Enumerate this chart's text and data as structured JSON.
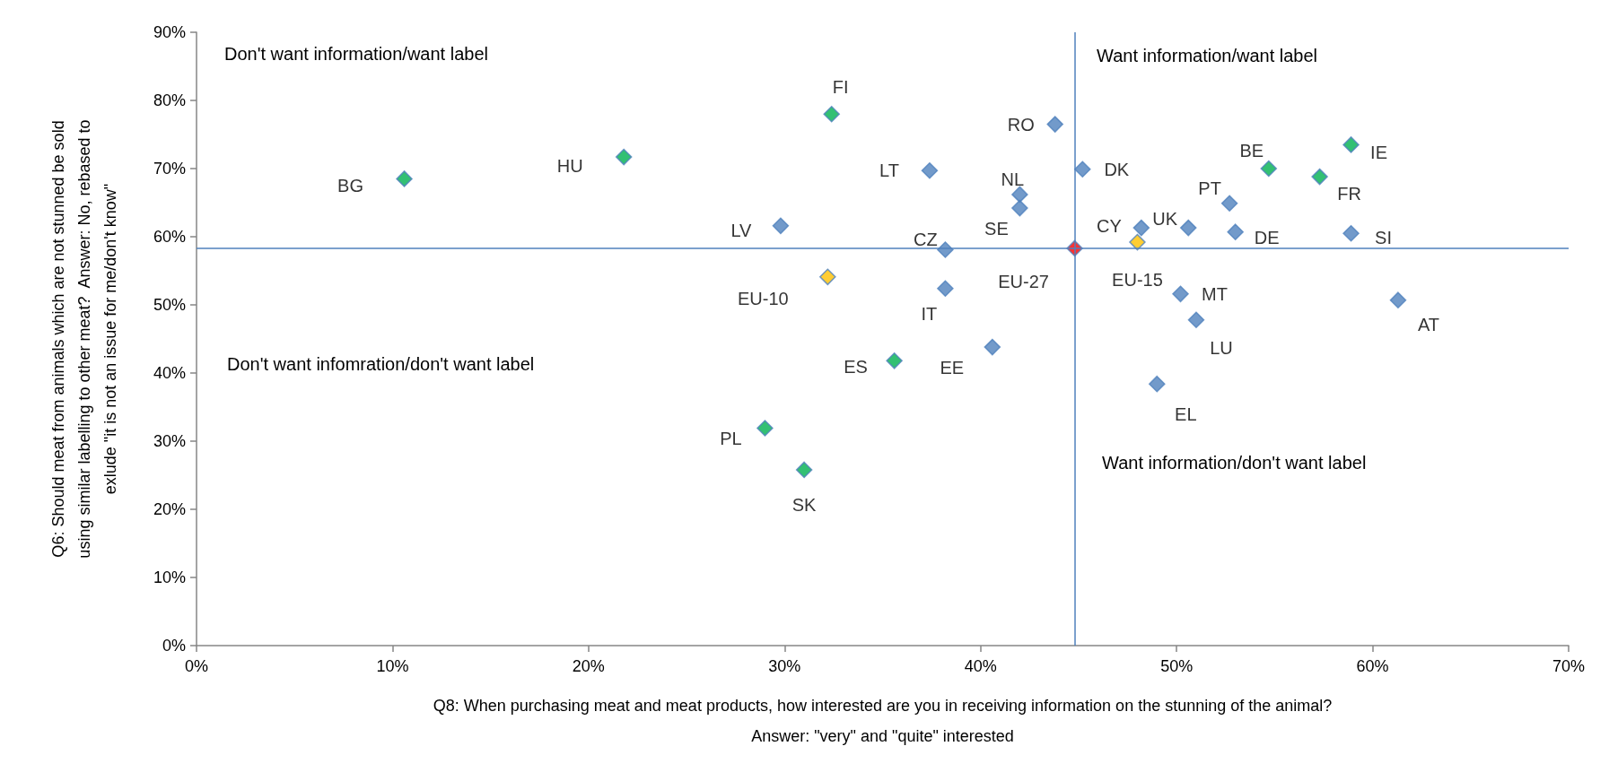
{
  "chart_data": {
    "type": "scatter",
    "xlabel": "Q8: When purchasing meat and meat products, how interested are you in receiving information on the stunning of the animal?\nAnswer: \"very\" and \"quite\" interested",
    "ylabel": "Q6: Should meat from animals which are not stunned be sold\nusing similar labelling to other meat?  Answer: No, rebased to\nexlude \"it is not an issue for me/don't know\"",
    "x": [
      10.6,
      21.8,
      32.4,
      37.4,
      29.8,
      32.2,
      38.2,
      38.2,
      35.6,
      40.6,
      29.0,
      31.0,
      43.8,
      42.0,
      42.0,
      44.8,
      45.2,
      48.2,
      48.0,
      50.6,
      52.7,
      53.0,
      54.7,
      57.3,
      58.9,
      58.9,
      50.2,
      51.0,
      61.3,
      49.0
    ],
    "values": [
      68.5,
      71.7,
      78.0,
      69.7,
      61.6,
      54.1,
      58.1,
      52.4,
      41.8,
      43.8,
      31.9,
      25.8,
      76.5,
      66.2,
      64.2,
      58.3,
      69.9,
      61.3,
      59.2,
      61.3,
      64.9,
      60.7,
      70.0,
      68.8,
      73.5,
      60.5,
      51.6,
      47.8,
      50.7,
      38.4
    ],
    "colors": [
      "#00b050",
      "#00b050",
      "#00b050",
      "#4f81bd",
      "#4f81bd",
      "#ffc000",
      "#4f81bd",
      "#4f81bd",
      "#00b050",
      "#4f81bd",
      "#00b050",
      "#00b050",
      "#4f81bd",
      "#4f81bd",
      "#4f81bd",
      "#ff0000",
      "#4f81bd",
      "#4f81bd",
      "#ffc000",
      "#4f81bd",
      "#4f81bd",
      "#4f81bd",
      "#00b050",
      "#00b050",
      "#00b050",
      "#4f81bd",
      "#4f81bd",
      "#4f81bd",
      "#4f81bd",
      "#4f81bd"
    ],
    "marker": "diamond",
    "xlim": [
      0,
      70
    ],
    "xticks": [
      {
        "value": 0,
        "label": "0%"
      },
      {
        "value": 10,
        "label": "10%"
      },
      {
        "value": 20,
        "label": "20%"
      },
      {
        "value": 30,
        "label": "30%"
      },
      {
        "value": 40,
        "label": "40%"
      },
      {
        "value": 50,
        "label": "50%"
      },
      {
        "value": 60,
        "label": "60%"
      },
      {
        "value": 70,
        "label": "70%"
      }
    ],
    "ylim": [
      0,
      90
    ],
    "yticks": [
      {
        "value": 0,
        "label": "0%"
      },
      {
        "value": 10,
        "label": "10%"
      },
      {
        "value": 20,
        "label": "20%"
      },
      {
        "value": 30,
        "label": "30%"
      },
      {
        "value": 40,
        "label": "40%"
      },
      {
        "value": 50,
        "label": "50%"
      },
      {
        "value": 60,
        "label": "60%"
      },
      {
        "value": 70,
        "label": "70%"
      },
      {
        "value": 80,
        "label": "80%"
      },
      {
        "value": 90,
        "label": "90%"
      }
    ],
    "grid": false,
    "ref_lines": [
      {
        "axis": "x",
        "value": 44.8,
        "color": "#4f81bd"
      },
      {
        "axis": "y",
        "value": 58.3,
        "color": "#4f81bd"
      }
    ],
    "annotations": [
      "Don't want information/want label",
      "Want information/want label",
      "Don't want infomration/don't want label",
      "Want information/don't want label",
      {
        "text": "BG",
        "x": 10.6,
        "y": 68.5
      },
      {
        "text": "HU",
        "x": 21.8,
        "y": 71.7
      },
      {
        "text": "FI",
        "x": 32.4,
        "y": 78.0
      },
      {
        "text": "LT",
        "x": 37.4,
        "y": 69.7
      },
      {
        "text": "LV",
        "x": 29.8,
        "y": 61.6
      },
      {
        "text": "EU-10",
        "x": 32.2,
        "y": 54.1
      },
      {
        "text": "CZ",
        "x": 38.2,
        "y": 58.1
      },
      {
        "text": "IT",
        "x": 38.2,
        "y": 52.4
      },
      {
        "text": "ES",
        "x": 35.6,
        "y": 41.8
      },
      {
        "text": "EE",
        "x": 40.6,
        "y": 43.8
      },
      {
        "text": "PL",
        "x": 29.0,
        "y": 31.9
      },
      {
        "text": "SK",
        "x": 31.0,
        "y": 25.8
      },
      {
        "text": "RO",
        "x": 43.8,
        "y": 76.5
      },
      {
        "text": "NL",
        "x": 42.0,
        "y": 66.2
      },
      {
        "text": "SE",
        "x": 42.0,
        "y": 64.2
      },
      {
        "text": "EU-27",
        "x": 44.8,
        "y": 58.3
      },
      {
        "text": "DK",
        "x": 45.2,
        "y": 69.9
      },
      {
        "text": "CY",
        "x": 48.2,
        "y": 61.3
      },
      {
        "text": "EU-15",
        "x": 48.0,
        "y": 59.2
      },
      {
        "text": "UK",
        "x": 50.6,
        "y": 61.3
      },
      {
        "text": "PT",
        "x": 52.7,
        "y": 64.9
      },
      {
        "text": "DE",
        "x": 53.0,
        "y": 60.7
      },
      {
        "text": "BE",
        "x": 54.7,
        "y": 70.0
      },
      {
        "text": "FR",
        "x": 57.3,
        "y": 68.8
      },
      {
        "text": "IE",
        "x": 58.9,
        "y": 73.5
      },
      {
        "text": "SI",
        "x": 58.9,
        "y": 60.5
      },
      {
        "text": "MT",
        "x": 50.2,
        "y": 51.6
      },
      {
        "text": "LU",
        "x": 51.0,
        "y": 47.8
      },
      {
        "text": "AT",
        "x": 61.3,
        "y": 50.7
      },
      {
        "text": "EL",
        "x": 49.0,
        "y": 38.4
      }
    ]
  }
}
